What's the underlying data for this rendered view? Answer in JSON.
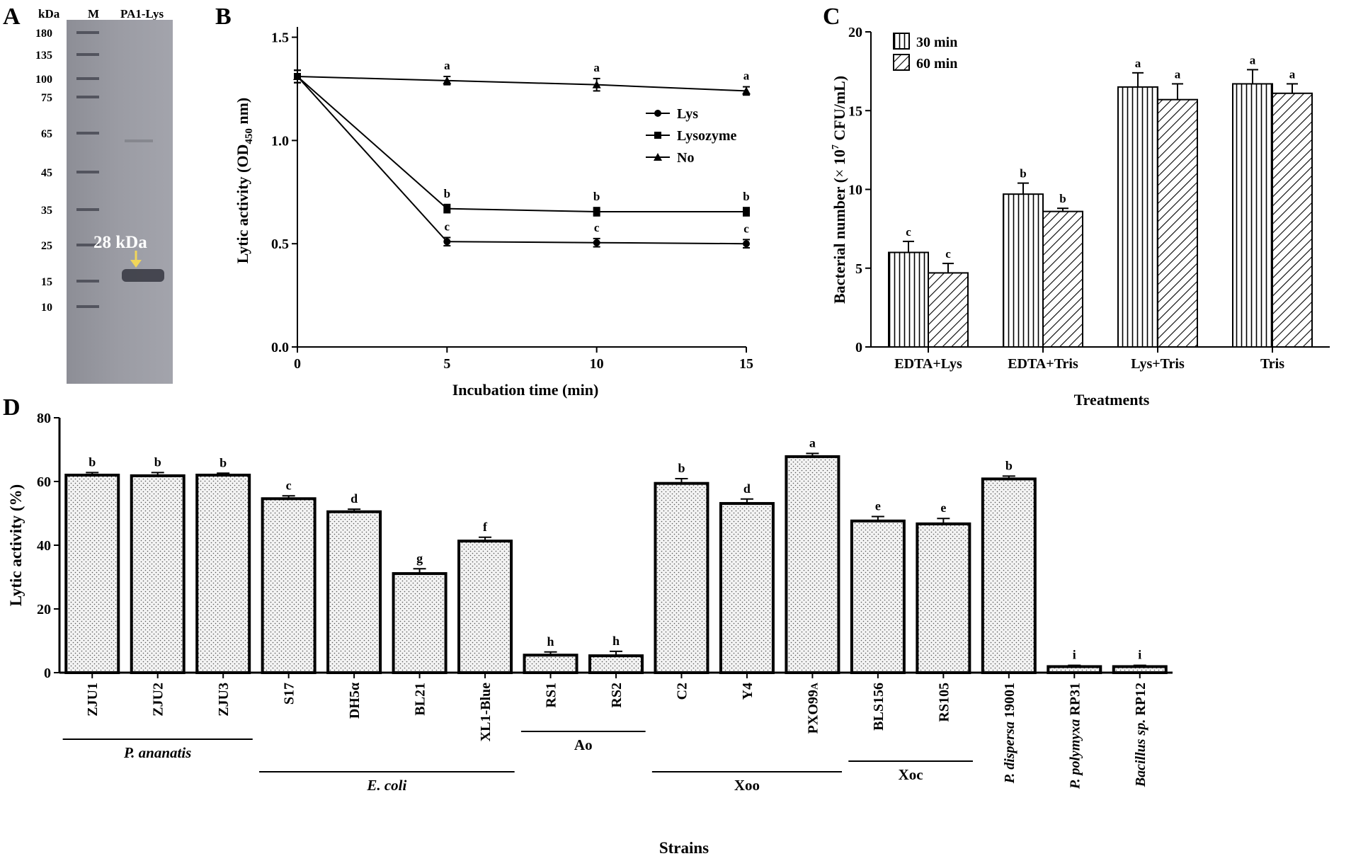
{
  "panels": {
    "a": "A",
    "b": "B",
    "c": "C",
    "d": "D"
  },
  "chart_data": [
    {
      "panel": "A",
      "type": "gel",
      "header": {
        "unit": "kDa",
        "lane_marker": "M",
        "lane_sample": "PA1-Lys"
      },
      "marker_sizes": [
        180,
        135,
        100,
        75,
        65,
        45,
        35,
        25,
        15,
        10
      ],
      "band_annotation": "28 kDa"
    },
    {
      "panel": "B",
      "type": "line",
      "xlabel": "Incubation time (min)",
      "ylabel": "Lytic activity (OD",
      "ylabel_sub": "450",
      "ylabel_end": " nm)",
      "x": [
        0,
        5,
        10,
        15
      ],
      "xticks": [
        "0",
        "5",
        "10",
        "15"
      ],
      "xlim": [
        0,
        15
      ],
      "ylim": [
        0,
        1.55
      ],
      "yticks": [
        "0.0",
        "0.5",
        "1.0",
        "1.5"
      ],
      "ytick_values": [
        0,
        0.5,
        1.0,
        1.5
      ],
      "legend_position": "center-right",
      "series": [
        {
          "name": "Lys",
          "marker": "circle",
          "values": [
            1.31,
            0.51,
            0.505,
            0.5
          ],
          "errors": [
            0.03,
            0.02,
            0.02,
            0.02
          ],
          "letters": [
            "",
            "c",
            "c",
            "c"
          ]
        },
        {
          "name": "Lysozyme",
          "marker": "square",
          "values": [
            1.31,
            0.67,
            0.655,
            0.655
          ],
          "errors": [
            0.03,
            0.02,
            0.02,
            0.02
          ],
          "letters": [
            "",
            "b",
            "b",
            "b"
          ]
        },
        {
          "name": "No",
          "marker": "triangle",
          "values": [
            1.31,
            1.29,
            1.27,
            1.24
          ],
          "errors": [
            0.03,
            0.02,
            0.03,
            0.02
          ],
          "letters": [
            "",
            "a",
            "a",
            "a"
          ]
        }
      ]
    },
    {
      "panel": "C",
      "type": "bar",
      "xlabel": "Treatments",
      "ylabel_pre": "Bacterial number (",
      "ylabel_times": "×",
      "ylabel_base": " 10",
      "ylabel_exp": "7",
      "ylabel_post": " CFU/mL)",
      "categories": [
        "EDTA+Lys",
        "EDTA+Tris",
        "Lys+Tris",
        "Tris"
      ],
      "ylim": [
        0,
        20
      ],
      "yticks": [
        "0",
        "5",
        "10",
        "15",
        "20"
      ],
      "ytick_values": [
        0,
        5,
        10,
        15,
        20
      ],
      "legend_position": "top-left",
      "series": [
        {
          "name": "30 min",
          "pattern": "vertical",
          "values": [
            6.0,
            9.7,
            16.5,
            16.7
          ],
          "errors": [
            0.7,
            0.7,
            0.9,
            0.9
          ],
          "letters": [
            "c",
            "b",
            "a",
            "a"
          ]
        },
        {
          "name": "60 min",
          "pattern": "diagonal",
          "values": [
            4.7,
            8.6,
            15.7,
            16.1
          ],
          "errors": [
            0.6,
            0.2,
            1.0,
            0.6
          ],
          "letters": [
            "c",
            "b",
            "a",
            "a"
          ]
        }
      ]
    },
    {
      "panel": "D",
      "type": "bar",
      "xlabel": "Strains",
      "ylabel": "Lytic activity (%)",
      "ylim": [
        0,
        80
      ],
      "yticks": [
        "0",
        "20",
        "40",
        "60",
        "80"
      ],
      "ytick_values": [
        0,
        20,
        40,
        60,
        80
      ],
      "categories": [
        "ZJU1",
        "ZJU2",
        "ZJU3",
        "S17",
        "DH5α",
        "BL21",
        "XL1-Blue",
        "RS1",
        "RS2",
        "C2",
        "Y4",
        "PXO99A",
        "BLS156",
        "RS105",
        "P. dispersa 19001",
        "P. polymyxa RP31",
        "Bacillus sp. RP12"
      ],
      "values": [
        62,
        61.8,
        62,
        54.6,
        50.5,
        31.1,
        41.3,
        5.5,
        5.3,
        59.4,
        53.1,
        67.8,
        47.6,
        46.7,
        60.8,
        1.9,
        1.9
      ],
      "errors": [
        0.8,
        1.0,
        0.6,
        0.9,
        0.8,
        1.5,
        1.2,
        1.0,
        1.4,
        1.5,
        1.4,
        1.0,
        1.4,
        1.7,
        0.9,
        0.4,
        0.4
      ],
      "letters": [
        "b",
        "b",
        "b",
        "c",
        "d",
        "g",
        "f",
        "h",
        "h",
        "b",
        "d",
        "a",
        "e",
        "e",
        "b",
        "i",
        "i"
      ],
      "groups": [
        {
          "label": "P. ananatis",
          "italic": true,
          "from": 0,
          "to": 2
        },
        {
          "label": "E. coli",
          "italic": true,
          "from": 3,
          "to": 6
        },
        {
          "label": "Ao",
          "italic": false,
          "from": 7,
          "to": 8
        },
        {
          "label": "Xoo",
          "italic": false,
          "from": 9,
          "to": 11
        },
        {
          "label": "Xoc",
          "italic": false,
          "from": 12,
          "to": 13
        }
      ]
    }
  ]
}
